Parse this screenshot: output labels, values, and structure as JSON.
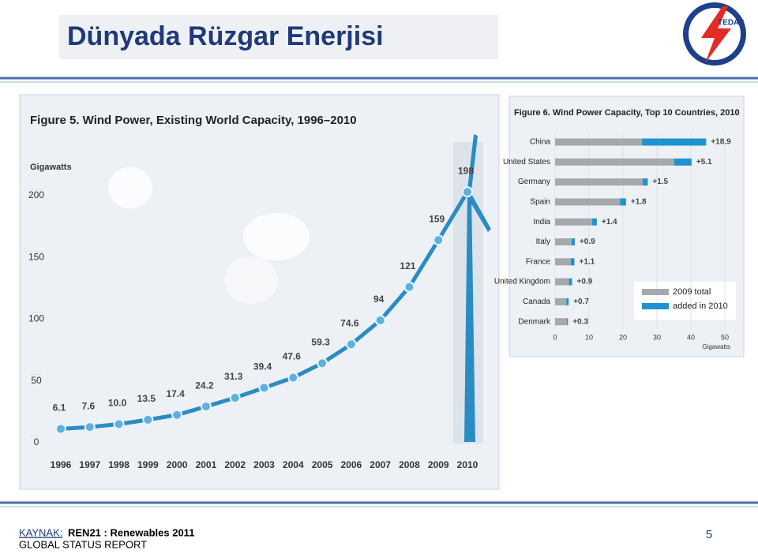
{
  "header": {
    "title": "Dünyada Rüzgar Enerjisi",
    "logo": "TEDAŞ"
  },
  "footer": {
    "source_label": "KAYNAK:",
    "source": "REN21 : Renewables 2011",
    "report": "GLOBAL STATUS REPORT",
    "page": "5"
  },
  "chart_data": [
    {
      "type": "line",
      "title": "Figure 5. Wind Power, Existing World Capacity, 1996–2010",
      "ylabel": "Gigawatts",
      "categories": [
        "1996",
        "1997",
        "1998",
        "1999",
        "2000",
        "2001",
        "2002",
        "2003",
        "2004",
        "2005",
        "2006",
        "2007",
        "2008",
        "2009",
        "2010"
      ],
      "values": [
        6.1,
        7.6,
        10.0,
        13.5,
        17.4,
        24.2,
        31.3,
        39.4,
        47.6,
        59.3,
        74.6,
        94,
        121,
        159,
        198
      ],
      "value_labels": [
        "6.1",
        "7.6",
        "10.0",
        "13.5",
        "17.4",
        "24.2",
        "31.3",
        "39.4",
        "47.6",
        "59.3",
        "74.6",
        "94",
        "121",
        "159",
        "198"
      ],
      "color": "#2b8cc4",
      "ylim": [
        0,
        200
      ],
      "yticks": [
        0,
        50,
        100,
        150,
        200
      ]
    },
    {
      "type": "bar",
      "orientation": "horizontal",
      "stacked": true,
      "title": "Figure 6. Wind Power Capacity, Top 10 Countries, 2010",
      "xlabel": "Gigawatts",
      "categories": [
        "China",
        "United States",
        "Germany",
        "Spain",
        "India",
        "Italy",
        "France",
        "United Kingdom",
        "Canada",
        "Denmark"
      ],
      "series": [
        {
          "name": "2009 total",
          "color": "#a5a8ad",
          "values": [
            25.6,
            35.1,
            25.8,
            19.1,
            10.9,
            4.9,
            4.6,
            4.1,
            3.3,
            3.5
          ]
        },
        {
          "name": "added in 2010",
          "color": "#1f93cf",
          "values": [
            18.9,
            5.1,
            1.5,
            1.8,
            1.4,
            0.9,
            1.1,
            0.9,
            0.7,
            0.3
          ],
          "value_labels": [
            "+18.9",
            "+5.1",
            "+1.5",
            "+1.8",
            "+1.4",
            "+0.9",
            "+1.1",
            "+0.9",
            "+0.7",
            "+0.3"
          ]
        }
      ],
      "xlim": [
        0,
        50
      ],
      "xticks": [
        0,
        10,
        20,
        30,
        40,
        50
      ],
      "legend": "lower right"
    }
  ]
}
